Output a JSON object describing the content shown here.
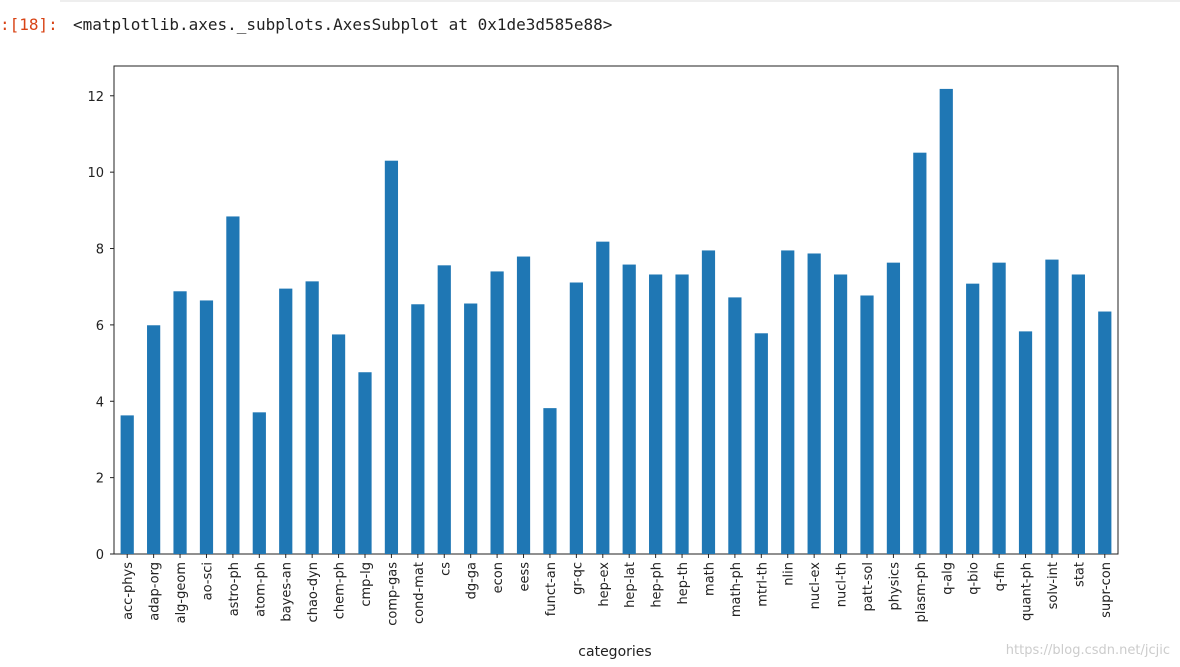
{
  "cell": {
    "prompt": ":[18]:",
    "output": "<matplotlib.axes._subplots.AxesSubplot at 0x1de3d585e88>"
  },
  "watermark": "https://blog.csdn.net/jcjic",
  "chart_data": {
    "type": "bar",
    "x_label": "categories",
    "categories": [
      "acc-phys",
      "adap-org",
      "alg-geom",
      "ao-sci",
      "astro-ph",
      "atom-ph",
      "bayes-an",
      "chao-dyn",
      "chem-ph",
      "cmp-lg",
      "comp-gas",
      "cond-mat",
      "cs",
      "dg-ga",
      "econ",
      "eess",
      "funct-an",
      "gr-qc",
      "hep-ex",
      "hep-lat",
      "hep-ph",
      "hep-th",
      "math",
      "math-ph",
      "mtrl-th",
      "nlin",
      "nucl-ex",
      "nucl-th",
      "patt-sol",
      "physics",
      "plasm-ph",
      "q-alg",
      "q-bio",
      "q-fin",
      "quant-ph",
      "solv-int",
      "stat",
      "supr-con"
    ],
    "values": [
      3.63,
      5.99,
      6.88,
      6.64,
      8.84,
      3.71,
      6.95,
      7.14,
      5.75,
      4.76,
      10.3,
      6.54,
      7.56,
      6.56,
      7.4,
      7.79,
      3.82,
      7.11,
      8.18,
      7.58,
      7.32,
      7.32,
      7.95,
      6.72,
      5.78,
      7.95,
      7.87,
      7.32,
      6.77,
      7.63,
      10.51,
      12.18,
      7.08,
      7.63,
      5.83,
      7.71,
      7.32,
      6.35
    ],
    "color": "#1f77b4",
    "ylim": [
      0,
      12.78
    ],
    "yticks": [
      0,
      2,
      4,
      6,
      8,
      10,
      12
    ],
    "grid": false
  }
}
